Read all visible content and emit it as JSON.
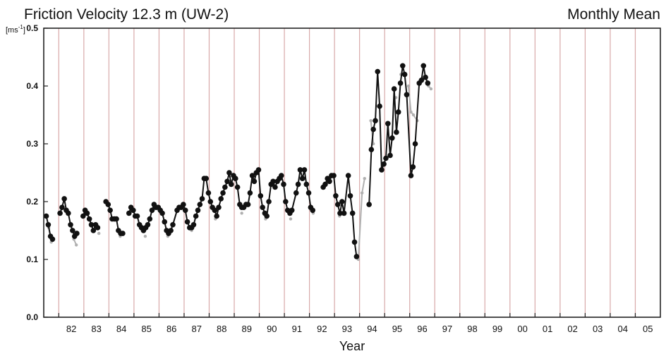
{
  "chart_data": {
    "type": "line",
    "title": "Friction Velocity 12.3 m (UW-2)",
    "subtitle": "Monthly Mean",
    "ylabel_unit": "[ms",
    "ylabel_unit_sup": "-1",
    "ylabel_unit_end": "]",
    "xlabel": "Year",
    "ylim": [
      0.0,
      0.5
    ],
    "xlim": [
      1981.4,
      2006.0
    ],
    "y_ticks": [
      "0.0",
      "0.1",
      "0.2",
      "0.3",
      "0.4",
      "0.5"
    ],
    "x_ticks": [
      "82",
      "83",
      "84",
      "85",
      "86",
      "87",
      "88",
      "89",
      "90",
      "91",
      "92",
      "93",
      "94",
      "95",
      "96",
      "97",
      "98",
      "99",
      "00",
      "01",
      "02",
      "03",
      "04",
      "05"
    ],
    "grid": "vertical",
    "colors": {
      "series": "#111111",
      "grey_series": "#b0b0b0",
      "grid": "#d8a9a9",
      "axis": "#222222"
    },
    "series": [
      {
        "name": "",
        "points": [
          [
            1981.5,
            0.175
          ],
          [
            1981.58,
            0.16
          ],
          [
            1981.67,
            0.14
          ],
          [
            1981.75,
            0.135
          ],
          [
            1982.05,
            0.18
          ],
          [
            1982.13,
            0.19
          ],
          [
            1982.22,
            0.205
          ],
          [
            1982.3,
            0.185
          ],
          [
            1982.38,
            0.18
          ],
          [
            1982.47,
            0.16
          ],
          [
            1982.55,
            0.15
          ],
          [
            1982.63,
            0.14
          ],
          [
            1982.72,
            0.145
          ],
          [
            1982.97,
            0.175
          ],
          [
            1983.05,
            0.185
          ],
          [
            1983.13,
            0.18
          ],
          [
            1983.22,
            0.17
          ],
          [
            1983.3,
            0.16
          ],
          [
            1983.38,
            0.15
          ],
          [
            1983.47,
            0.16
          ],
          [
            1983.55,
            0.155
          ],
          [
            1983.88,
            0.2
          ],
          [
            1983.97,
            0.195
          ],
          [
            1984.05,
            0.185
          ],
          [
            1984.13,
            0.17
          ],
          [
            1984.22,
            0.17
          ],
          [
            1984.3,
            0.17
          ],
          [
            1984.38,
            0.15
          ],
          [
            1984.47,
            0.145
          ],
          [
            1984.55,
            0.145
          ],
          [
            1984.8,
            0.18
          ],
          [
            1984.88,
            0.19
          ],
          [
            1984.97,
            0.185
          ],
          [
            1985.05,
            0.175
          ],
          [
            1985.13,
            0.175
          ],
          [
            1985.22,
            0.16
          ],
          [
            1985.3,
            0.155
          ],
          [
            1985.38,
            0.15
          ],
          [
            1985.47,
            0.155
          ],
          [
            1985.55,
            0.16
          ],
          [
            1985.63,
            0.17
          ],
          [
            1985.72,
            0.185
          ],
          [
            1985.8,
            0.195
          ],
          [
            1985.88,
            0.19
          ],
          [
            1985.97,
            0.19
          ],
          [
            1986.05,
            0.185
          ],
          [
            1986.13,
            0.18
          ],
          [
            1986.22,
            0.165
          ],
          [
            1986.3,
            0.15
          ],
          [
            1986.38,
            0.145
          ],
          [
            1986.47,
            0.15
          ],
          [
            1986.55,
            0.16
          ],
          [
            1986.72,
            0.185
          ],
          [
            1986.8,
            0.19
          ],
          [
            1986.88,
            0.19
          ],
          [
            1986.97,
            0.195
          ],
          [
            1987.05,
            0.185
          ],
          [
            1987.13,
            0.165
          ],
          [
            1987.22,
            0.155
          ],
          [
            1987.3,
            0.155
          ],
          [
            1987.38,
            0.16
          ],
          [
            1987.47,
            0.175
          ],
          [
            1987.55,
            0.185
          ],
          [
            1987.63,
            0.195
          ],
          [
            1987.72,
            0.205
          ],
          [
            1987.8,
            0.24
          ],
          [
            1987.88,
            0.24
          ],
          [
            1987.97,
            0.215
          ],
          [
            1988.05,
            0.2
          ],
          [
            1988.13,
            0.19
          ],
          [
            1988.22,
            0.185
          ],
          [
            1988.3,
            0.175
          ],
          [
            1988.38,
            0.19
          ],
          [
            1988.47,
            0.205
          ],
          [
            1988.55,
            0.215
          ],
          [
            1988.63,
            0.225
          ],
          [
            1988.72,
            0.235
          ],
          [
            1988.8,
            0.25
          ],
          [
            1988.88,
            0.23
          ],
          [
            1988.97,
            0.245
          ],
          [
            1989.05,
            0.24
          ],
          [
            1989.13,
            0.225
          ],
          [
            1989.22,
            0.195
          ],
          [
            1989.3,
            0.19
          ],
          [
            1989.38,
            0.19
          ],
          [
            1989.47,
            0.195
          ],
          [
            1989.55,
            0.195
          ],
          [
            1989.63,
            0.215
          ],
          [
            1989.72,
            0.245
          ],
          [
            1989.8,
            0.235
          ],
          [
            1989.88,
            0.25
          ],
          [
            1989.97,
            0.255
          ],
          [
            1990.05,
            0.21
          ],
          [
            1990.13,
            0.19
          ],
          [
            1990.22,
            0.18
          ],
          [
            1990.3,
            0.175
          ],
          [
            1990.38,
            0.2
          ],
          [
            1990.47,
            0.23
          ],
          [
            1990.55,
            0.235
          ],
          [
            1990.63,
            0.225
          ],
          [
            1990.72,
            0.235
          ],
          [
            1990.8,
            0.24
          ],
          [
            1990.88,
            0.245
          ],
          [
            1990.97,
            0.23
          ],
          [
            1991.05,
            0.2
          ],
          [
            1991.13,
            0.185
          ],
          [
            1991.22,
            0.18
          ],
          [
            1991.3,
            0.185
          ],
          [
            1991.47,
            0.215
          ],
          [
            1991.55,
            0.23
          ],
          [
            1991.63,
            0.255
          ],
          [
            1991.72,
            0.24
          ],
          [
            1991.8,
            0.255
          ],
          [
            1991.88,
            0.23
          ],
          [
            1991.97,
            0.215
          ],
          [
            1992.05,
            0.19
          ],
          [
            1992.13,
            0.185
          ],
          [
            1992.55,
            0.225
          ],
          [
            1992.63,
            0.23
          ],
          [
            1992.72,
            0.24
          ],
          [
            1992.8,
            0.235
          ],
          [
            1992.88,
            0.245
          ],
          [
            1992.97,
            0.245
          ],
          [
            1993.05,
            0.21
          ],
          [
            1993.13,
            0.195
          ],
          [
            1993.22,
            0.18
          ],
          [
            1993.3,
            0.2
          ],
          [
            1993.38,
            0.18
          ],
          [
            1993.55,
            0.245
          ],
          [
            1993.63,
            0.21
          ],
          [
            1993.72,
            0.18
          ],
          [
            1993.8,
            0.13
          ],
          [
            1993.88,
            0.105
          ],
          [
            1994.38,
            0.195
          ],
          [
            1994.47,
            0.29
          ],
          [
            1994.55,
            0.325
          ],
          [
            1994.63,
            0.34
          ],
          [
            1994.72,
            0.425
          ],
          [
            1994.8,
            0.365
          ],
          [
            1994.88,
            0.255
          ],
          [
            1994.97,
            0.265
          ],
          [
            1995.05,
            0.275
          ],
          [
            1995.13,
            0.335
          ],
          [
            1995.22,
            0.28
          ],
          [
            1995.3,
            0.31
          ],
          [
            1995.38,
            0.395
          ],
          [
            1995.47,
            0.32
          ],
          [
            1995.55,
            0.355
          ],
          [
            1995.63,
            0.405
          ],
          [
            1995.72,
            0.435
          ],
          [
            1995.8,
            0.42
          ],
          [
            1995.88,
            0.385
          ],
          [
            1996.05,
            0.245
          ],
          [
            1996.13,
            0.26
          ],
          [
            1996.22,
            0.3
          ],
          [
            1996.38,
            0.405
          ],
          [
            1996.47,
            0.41
          ],
          [
            1996.55,
            0.435
          ],
          [
            1996.63,
            0.415
          ],
          [
            1996.72,
            0.405
          ]
        ]
      },
      {
        "name": "",
        "points": [
          [
            1981.6,
            0.155
          ],
          [
            1981.7,
            0.13
          ],
          [
            1982.6,
            0.135
          ],
          [
            1982.7,
            0.125
          ],
          [
            1983.6,
            0.145
          ],
          [
            1984.45,
            0.14
          ],
          [
            1985.45,
            0.14
          ],
          [
            1986.35,
            0.14
          ],
          [
            1987.3,
            0.15
          ],
          [
            1988.25,
            0.17
          ],
          [
            1989.3,
            0.18
          ],
          [
            1990.25,
            0.17
          ],
          [
            1991.25,
            0.17
          ],
          [
            1992.15,
            0.18
          ],
          [
            1993.2,
            0.175
          ],
          [
            1993.95,
            0.1
          ],
          [
            1994.1,
            0.215
          ],
          [
            1994.2,
            0.24
          ],
          [
            1994.45,
            0.34
          ],
          [
            1994.55,
            0.3
          ],
          [
            1995.45,
            0.38
          ],
          [
            1995.65,
            0.42
          ],
          [
            1995.95,
            0.4
          ],
          [
            1996.05,
            0.355
          ],
          [
            1996.15,
            0.35
          ],
          [
            1996.3,
            0.34
          ],
          [
            1996.75,
            0.4
          ],
          [
            1996.85,
            0.395
          ]
        ]
      }
    ]
  }
}
